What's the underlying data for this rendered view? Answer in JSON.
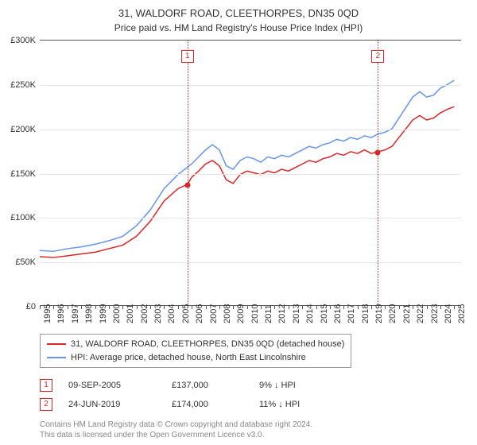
{
  "header": {
    "title": "31, WALDORF ROAD, CLEETHORPES, DN35 0QD",
    "subtitle": "Price paid vs. HM Land Registry's House Price Index (HPI)"
  },
  "chart": {
    "type": "line",
    "background_color": "#ffffff",
    "grid_color": "#e6e6e6",
    "axis_color": "#555555",
    "ylim": [
      0,
      300000
    ],
    "ytick_step": 50000,
    "ytick_labels": [
      "£0",
      "£50K",
      "£100K",
      "£150K",
      "£200K",
      "£250K",
      "£300K"
    ],
    "xlim": [
      1995,
      2025.5
    ],
    "xtick_years": [
      1995,
      1996,
      1997,
      1998,
      1999,
      2000,
      2001,
      2002,
      2003,
      2004,
      2005,
      2006,
      2007,
      2008,
      2009,
      2010,
      2011,
      2012,
      2013,
      2014,
      2015,
      2016,
      2017,
      2018,
      2019,
      2020,
      2021,
      2022,
      2023,
      2024,
      2025
    ],
    "title_fontsize": 13,
    "label_fontsize": 11,
    "series": [
      {
        "name": "price_paid",
        "label": "31, WALDORF ROAD, CLEETHORPES, DN35 0QD (detached house)",
        "color": "#dc2626",
        "line_width": 1.5,
        "points": [
          [
            1995,
            55000
          ],
          [
            1996,
            54000
          ],
          [
            1997,
            56000
          ],
          [
            1998,
            58000
          ],
          [
            1999,
            60000
          ],
          [
            2000,
            64000
          ],
          [
            2001,
            68000
          ],
          [
            2002,
            78000
          ],
          [
            2003,
            95000
          ],
          [
            2004,
            118000
          ],
          [
            2005,
            132000
          ],
          [
            2005.69,
            137000
          ],
          [
            2006,
            145000
          ],
          [
            2006.5,
            152000
          ],
          [
            2007,
            160000
          ],
          [
            2007.5,
            164000
          ],
          [
            2008,
            158000
          ],
          [
            2008.5,
            142000
          ],
          [
            2009,
            138000
          ],
          [
            2009.5,
            148000
          ],
          [
            2010,
            152000
          ],
          [
            2010.5,
            150000
          ],
          [
            2011,
            148000
          ],
          [
            2011.5,
            152000
          ],
          [
            2012,
            150000
          ],
          [
            2012.5,
            154000
          ],
          [
            2013,
            152000
          ],
          [
            2013.5,
            156000
          ],
          [
            2014,
            160000
          ],
          [
            2014.5,
            164000
          ],
          [
            2015,
            162000
          ],
          [
            2015.5,
            166000
          ],
          [
            2016,
            168000
          ],
          [
            2016.5,
            172000
          ],
          [
            2017,
            170000
          ],
          [
            2017.5,
            174000
          ],
          [
            2018,
            172000
          ],
          [
            2018.5,
            176000
          ],
          [
            2019,
            172000
          ],
          [
            2019.48,
            174000
          ],
          [
            2020,
            176000
          ],
          [
            2020.5,
            180000
          ],
          [
            2021,
            190000
          ],
          [
            2021.5,
            200000
          ],
          [
            2022,
            210000
          ],
          [
            2022.5,
            215000
          ],
          [
            2023,
            210000
          ],
          [
            2023.5,
            212000
          ],
          [
            2024,
            218000
          ],
          [
            2024.5,
            222000
          ],
          [
            2025,
            225000
          ]
        ]
      },
      {
        "name": "hpi",
        "label": "HPI: Average price, detached house, North East Lincolnshire",
        "color": "#6495ed",
        "line_width": 1.5,
        "points": [
          [
            1995,
            62000
          ],
          [
            1996,
            61000
          ],
          [
            1997,
            64000
          ],
          [
            1998,
            66000
          ],
          [
            1999,
            69000
          ],
          [
            2000,
            73000
          ],
          [
            2001,
            78000
          ],
          [
            2002,
            90000
          ],
          [
            2003,
            108000
          ],
          [
            2004,
            132000
          ],
          [
            2005,
            148000
          ],
          [
            2006,
            160000
          ],
          [
            2006.5,
            168000
          ],
          [
            2007,
            176000
          ],
          [
            2007.5,
            182000
          ],
          [
            2008,
            176000
          ],
          [
            2008.5,
            158000
          ],
          [
            2009,
            154000
          ],
          [
            2009.5,
            164000
          ],
          [
            2010,
            168000
          ],
          [
            2010.5,
            166000
          ],
          [
            2011,
            162000
          ],
          [
            2011.5,
            168000
          ],
          [
            2012,
            166000
          ],
          [
            2012.5,
            170000
          ],
          [
            2013,
            168000
          ],
          [
            2013.5,
            172000
          ],
          [
            2014,
            176000
          ],
          [
            2014.5,
            180000
          ],
          [
            2015,
            178000
          ],
          [
            2015.5,
            182000
          ],
          [
            2016,
            184000
          ],
          [
            2016.5,
            188000
          ],
          [
            2017,
            186000
          ],
          [
            2017.5,
            190000
          ],
          [
            2018,
            188000
          ],
          [
            2018.5,
            192000
          ],
          [
            2019,
            190000
          ],
          [
            2019.5,
            194000
          ],
          [
            2020,
            196000
          ],
          [
            2020.5,
            200000
          ],
          [
            2021,
            212000
          ],
          [
            2021.5,
            224000
          ],
          [
            2022,
            236000
          ],
          [
            2022.5,
            242000
          ],
          [
            2023,
            236000
          ],
          [
            2023.5,
            238000
          ],
          [
            2024,
            246000
          ],
          [
            2024.5,
            250000
          ],
          [
            2025,
            255000
          ]
        ]
      }
    ],
    "sale_markers": [
      {
        "n": "1",
        "date_x": 2005.69,
        "price": 137000,
        "color": "#dc2626"
      },
      {
        "n": "2",
        "date_x": 2019.48,
        "price": 174000,
        "color": "#dc2626"
      }
    ]
  },
  "legend": {
    "rows": [
      {
        "color": "#dc2626",
        "label": "31, WALDORF ROAD, CLEETHORPES, DN35 0QD (detached house)"
      },
      {
        "color": "#6495ed",
        "label": "HPI: Average price, detached house, North East Lincolnshire"
      }
    ]
  },
  "sales": [
    {
      "n": "1",
      "date": "09-SEP-2005",
      "price": "£137,000",
      "pct": "9% ↓ HPI",
      "color": "#dc2626"
    },
    {
      "n": "2",
      "date": "24-JUN-2019",
      "price": "£174,000",
      "pct": "11% ↓ HPI",
      "color": "#dc2626"
    }
  ],
  "footer": {
    "line1": "Contains HM Land Registry data © Crown copyright and database right 2024.",
    "line2": "This data is licensed under the Open Government Licence v3.0."
  }
}
